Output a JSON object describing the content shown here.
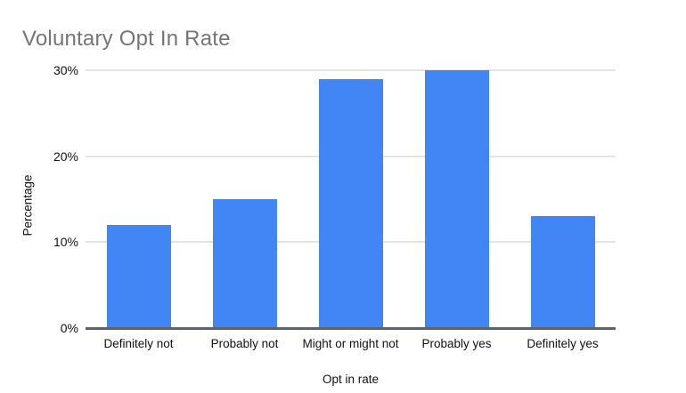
{
  "chart_data": {
    "type": "bar",
    "title": "Voluntary Opt In Rate",
    "xlabel": "Opt in rate",
    "ylabel": "Percentage",
    "categories": [
      "Definitely not",
      "Probably not",
      "Might or might not",
      "Probably yes",
      "Definitely yes"
    ],
    "values": [
      12,
      15,
      29,
      30,
      13
    ],
    "ylim": [
      0,
      30
    ],
    "ytick_values": [
      0,
      10,
      20,
      30
    ],
    "ytick_labels": [
      "0%",
      "10%",
      "20%",
      "30%"
    ],
    "grid": true,
    "legend_position": "none",
    "colors": {
      "bar": "#4285f4",
      "title_text": "#757575",
      "axis_text": "#111111",
      "gridline": "#e3e3e3",
      "axis_line": "#5f6368",
      "background": "#ffffff"
    }
  }
}
